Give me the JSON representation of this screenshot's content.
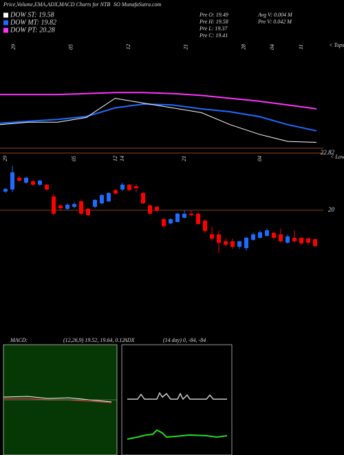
{
  "header": {
    "title": "Price,Volume,EMA,ADX,MACD Charts for NTB",
    "site": "SO MunafaSutra.com",
    "legend": [
      {
        "label": "DOW ST: 19.58",
        "color": "#ffffff"
      },
      {
        "label": "DOW MT: 19.82",
        "color": "#1e6bff"
      },
      {
        "label": "DOW PT: 20.28",
        "color": "#ff33ff"
      }
    ],
    "stats": [
      "Pre  O: 19.49",
      "Pre  H: 19.58",
      "Pre  L: 19.37",
      "Pre  C: 19.41",
      "Avg  V: 0.004  M",
      "Pre   V: 0.042  M"
    ],
    "tops": "< Tops",
    "lows": "< Lows",
    "macd_label": "MACD:",
    "macd_values": "(12,26,9) 19.52, 19.64, 0.12",
    "adx_label": "ADX",
    "adx_values": "(14  day) 0, -84, -84"
  },
  "chart_data": [
    {
      "type": "line",
      "categories": [
        "29",
        null,
        "05",
        null,
        "12",
        null,
        "21",
        null,
        "28",
        "04",
        "11",
        null
      ],
      "ylim": [
        19.4,
        21.2
      ],
      "series": [
        {
          "name": "DOW PT",
          "color": "#ff33ff",
          "values": [
            20.58,
            20.58,
            20.58,
            20.6,
            20.62,
            20.62,
            20.6,
            20.56,
            20.5,
            20.44,
            20.36,
            20.28
          ]
        },
        {
          "name": "DOW MT",
          "color": "#1e6bff",
          "values": [
            19.98,
            20.02,
            20.06,
            20.12,
            20.3,
            20.38,
            20.36,
            20.28,
            20.22,
            20.12,
            19.95,
            19.82
          ]
        },
        {
          "name": "DOW ST",
          "color": "#ffffff",
          "values": [
            19.95,
            20.0,
            20.0,
            20.1,
            20.5,
            20.4,
            20.3,
            20.2,
            19.95,
            19.75,
            19.6,
            19.58
          ]
        }
      ]
    },
    {
      "type": "candlestick",
      "up_color": "#1e6bff",
      "down_color": "#ff0000",
      "ylim": [
        17.5,
        22.82
      ],
      "yticks": [
        22.82,
        20
      ],
      "categories": [
        "29",
        null,
        null,
        null,
        null,
        null,
        null,
        null,
        null,
        null,
        "05",
        null,
        null,
        null,
        null,
        null,
        "12",
        "14",
        null,
        null,
        null,
        null,
        null,
        null,
        null,
        null,
        "21",
        null,
        null,
        null,
        null,
        null,
        null,
        null,
        null,
        null,
        null,
        "04",
        null,
        null,
        null,
        null,
        null,
        null,
        null,
        null
      ],
      "open": [
        20.92,
        21.02,
        21.6,
        21.36,
        21.43,
        21.26,
        21.26,
        20.68,
        20.24,
        20.07,
        20.17,
        20.44,
        20.07,
        20.17,
        20.34,
        20.44,
        20.99,
        21.02,
        21.26,
        21.19,
        20.85,
        20.24,
        20.17,
        19.56,
        19.35,
        19.42,
        19.63,
        19.83,
        19.83,
        19.49,
        18.81,
        18.81,
        18.47,
        18.47,
        18.2,
        18.13,
        18.54,
        18.64,
        18.74,
        18.88,
        18.81,
        18.4,
        18.64,
        18.64,
        18.61,
        18.57
      ],
      "high": [
        21.1,
        22.2,
        21.7,
        21.65,
        21.5,
        21.5,
        21.3,
        20.8,
        20.3,
        20.35,
        20.4,
        20.5,
        20.1,
        20.55,
        20.8,
        20.9,
        21.05,
        21.35,
        21.3,
        21.3,
        20.9,
        20.3,
        20.2,
        19.6,
        19.6,
        19.9,
        20.0,
        20.0,
        19.9,
        19.55,
        19.2,
        19.0,
        18.6,
        18.6,
        18.5,
        18.7,
        18.9,
        19.0,
        19.1,
        18.95,
        19.1,
        18.8,
        19.0,
        18.7,
        18.65,
        18.6
      ],
      "low": [
        20.85,
        20.9,
        21.4,
        21.3,
        21.2,
        21.2,
        20.95,
        19.75,
        20.0,
        20.0,
        20.1,
        19.75,
        19.7,
        20.1,
        20.3,
        20.4,
        20.8,
        20.95,
        20.95,
        20.9,
        20.3,
        19.8,
        19.9,
        19.15,
        19.3,
        19.4,
        19.6,
        19.7,
        19.3,
        18.9,
        18.5,
        17.9,
        18.2,
        18.1,
        18.1,
        18.0,
        18.5,
        18.6,
        18.7,
        18.55,
        18.4,
        18.35,
        18.4,
        18.3,
        18.3,
        18.2
      ],
      "close": [
        21.05,
        21.87,
        21.46,
        21.6,
        21.26,
        21.46,
        21.02,
        19.83,
        20.1,
        20.27,
        20.31,
        19.83,
        19.76,
        20.51,
        20.75,
        20.85,
        20.82,
        21.26,
        20.99,
        21.09,
        20.34,
        19.83,
        19.97,
        19.22,
        19.56,
        19.83,
        19.83,
        19.76,
        19.32,
        18.98,
        18.6,
        18.4,
        18.3,
        18.2,
        18.47,
        18.64,
        18.81,
        18.91,
        19.01,
        18.64,
        18.47,
        18.71,
        18.47,
        18.37,
        18.4,
        18.23
      ]
    }
  ]
}
